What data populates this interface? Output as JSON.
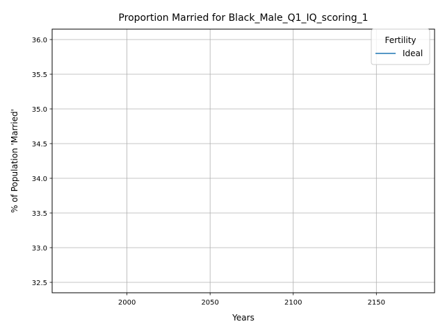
{
  "chart_data": {
    "type": "line",
    "title": "Proportion Married for Black_Male_Q1_IQ_scoring_1",
    "xlabel": "Years",
    "ylabel": "% of Population 'Married'",
    "xlim": [
      1955,
      2185
    ],
    "ylim": [
      32.35,
      36.15
    ],
    "x_ticks": [
      2000,
      2050,
      2100,
      2150
    ],
    "x_tick_labels": [
      "2000",
      "2050",
      "2100",
      "2150"
    ],
    "y_ticks": [
      32.5,
      33.0,
      33.5,
      34.0,
      34.5,
      35.0,
      35.5,
      36.0
    ],
    "y_tick_labels": [
      "32.5",
      "33.0",
      "33.5",
      "34.0",
      "34.5",
      "35.0",
      "35.5",
      "36.0"
    ],
    "grid": true,
    "legend": {
      "title": "Fertility",
      "placement": "top-right",
      "entries": [
        {
          "label": "Ideal",
          "color": "#1f77b4"
        }
      ]
    },
    "series": [
      {
        "name": "Ideal",
        "color": "#1f77b4",
        "x": [],
        "y": []
      }
    ]
  }
}
